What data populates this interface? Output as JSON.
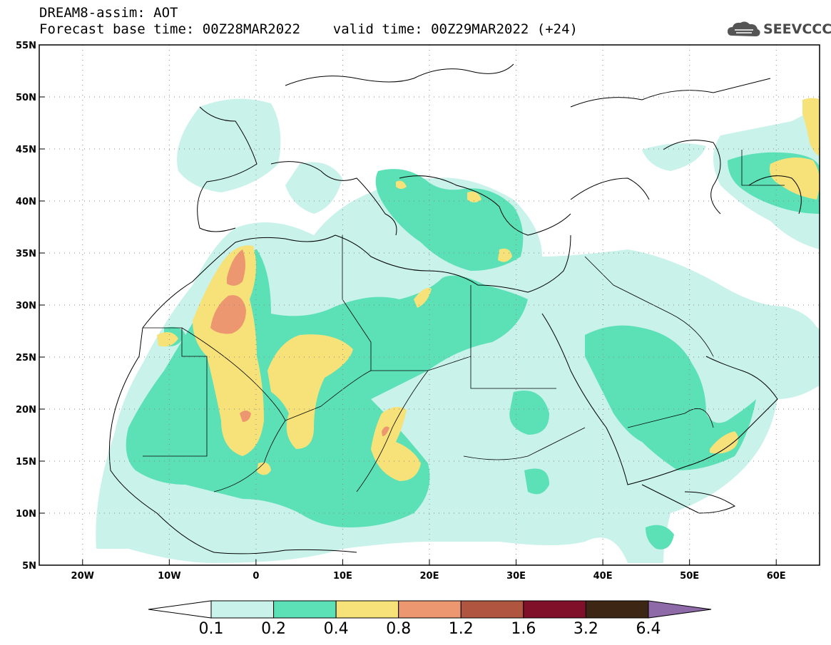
{
  "title": {
    "line1": "DREAM8-assim: AOT",
    "line2": "Forecast base time: 00Z28MAR2022    valid time: 00Z29MAR2022 (+24)"
  },
  "logo": {
    "text": "SEEVCCC",
    "icon": "cloud-icon"
  },
  "map": {
    "lon_range": [
      -25,
      65
    ],
    "lat_range": [
      5,
      55
    ],
    "lon_ticks": [
      {
        "v": -20,
        "label": "20W"
      },
      {
        "v": -10,
        "label": "10W"
      },
      {
        "v": 0,
        "label": "0"
      },
      {
        "v": 10,
        "label": "10E"
      },
      {
        "v": 20,
        "label": "20E"
      },
      {
        "v": 30,
        "label": "30E"
      },
      {
        "v": 40,
        "label": "40E"
      },
      {
        "v": 50,
        "label": "50E"
      },
      {
        "v": 60,
        "label": "60E"
      }
    ],
    "lat_ticks": [
      {
        "v": 55,
        "label": "55N"
      },
      {
        "v": 50,
        "label": "50N"
      },
      {
        "v": 45,
        "label": "45N"
      },
      {
        "v": 40,
        "label": "40N"
      },
      {
        "v": 35,
        "label": "35N"
      },
      {
        "v": 30,
        "label": "30N"
      },
      {
        "v": 25,
        "label": "25N"
      },
      {
        "v": 20,
        "label": "20N"
      },
      {
        "v": 15,
        "label": "15N"
      },
      {
        "v": 10,
        "label": "10N"
      },
      {
        "v": 5,
        "label": "5N"
      }
    ],
    "grid": "dotted"
  },
  "colorbar": {
    "colors": [
      "#ffffff",
      "#c8f2ea",
      "#5ce0b6",
      "#f7e27a",
      "#ec9770",
      "#b05540",
      "#80102a",
      "#3d2614",
      "#8e6aa9"
    ],
    "labels": [
      "0.1",
      "0.2",
      "0.4",
      "0.8",
      "1.2",
      "1.6",
      "3.2",
      "6.4"
    ]
  }
}
